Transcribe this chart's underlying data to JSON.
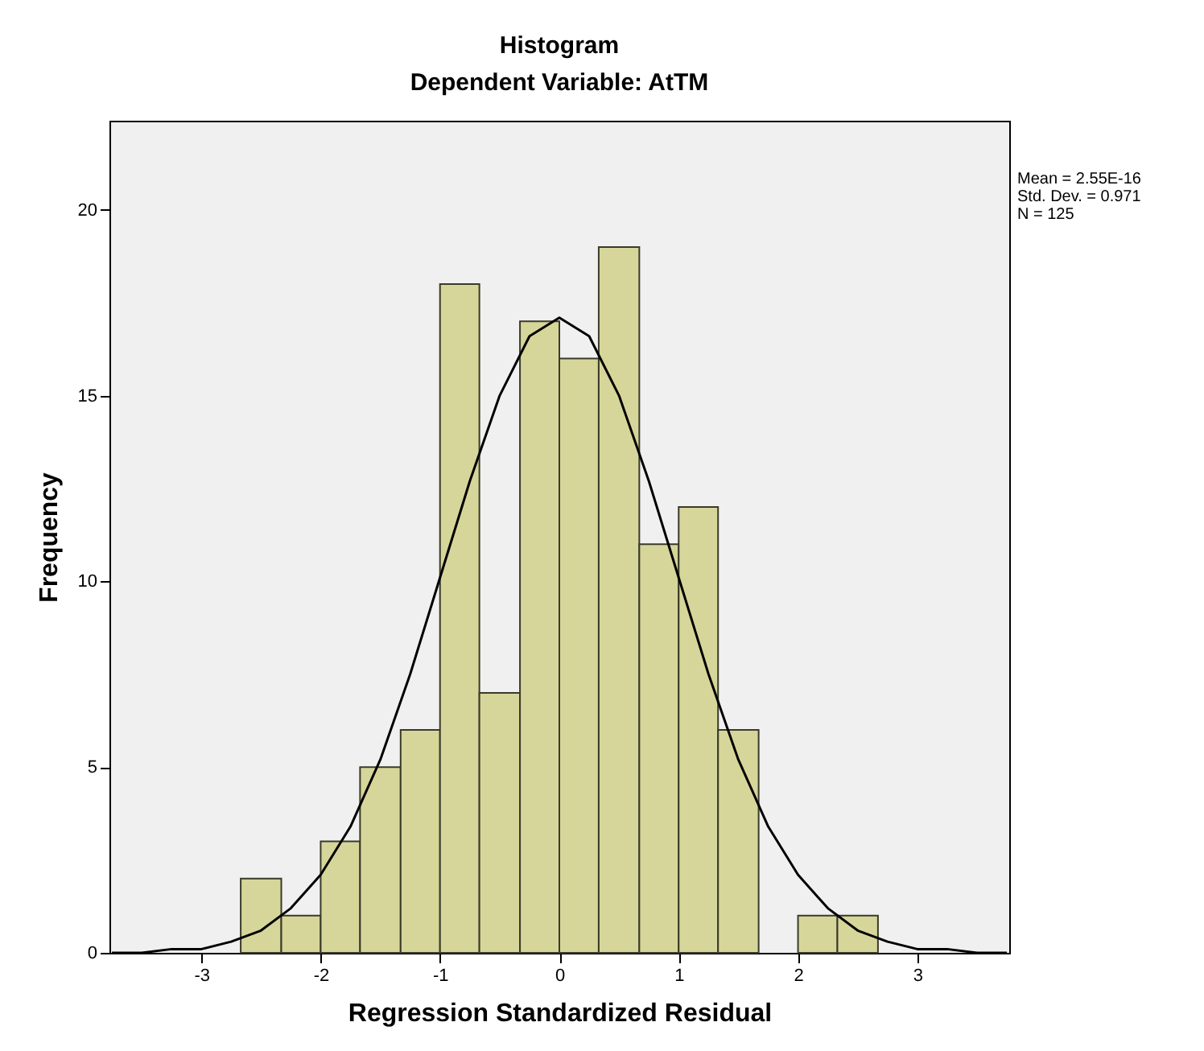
{
  "chart_data": {
    "type": "histogram",
    "title": "Histogram",
    "subtitle": "Dependent Variable: AtTM",
    "xlabel": "Regression Standardized Residual",
    "ylabel": "Frequency",
    "bins": [
      -2.67,
      -2.33,
      -2,
      -1.67,
      -1.33,
      -1,
      -0.67,
      -0.33,
      0,
      0.33,
      0.67,
      1,
      1.33,
      1.67,
      2,
      2.33,
      2.67
    ],
    "values": [
      2,
      1,
      3,
      5,
      6,
      18,
      7,
      17,
      16,
      19,
      11,
      12,
      6,
      0,
      1,
      1
    ],
    "color": "#d6d69a",
    "series": [
      {
        "type": "line",
        "color": "#000000",
        "x": [
          -3.75,
          -3.5,
          -3.25,
          -3,
          -2.75,
          -2.5,
          -2.25,
          -2,
          -1.75,
          -1.5,
          -1.25,
          -1,
          -0.75,
          -0.5,
          -0.25,
          0,
          0.25,
          0.5,
          0.75,
          1,
          1.25,
          1.5,
          1.75,
          2,
          2.25,
          2.5,
          2.75,
          3,
          3.25,
          3.5,
          3.75
        ],
        "values": [
          0,
          0,
          0.1,
          0.1,
          0.3,
          0.6,
          1.2,
          2.1,
          3.4,
          5.2,
          7.5,
          10.1,
          12.7,
          15,
          16.6,
          17.1,
          16.6,
          15,
          12.7,
          10.1,
          7.5,
          5.2,
          3.4,
          2.1,
          1.2,
          0.6,
          0.3,
          0.1,
          0.1,
          0,
          0
        ]
      }
    ],
    "xlim": [
      -3.77,
      3.77
    ],
    "xticks": [
      -3,
      -2,
      -1,
      0,
      1,
      2,
      3
    ],
    "ylim": [
      0,
      22.4
    ],
    "yticks": [
      0,
      5,
      10,
      15,
      20
    ],
    "grid": false,
    "annotations": [
      "Mean = 2.55E-16",
      "Std. Dev. = 0.971",
      "N = 125"
    ]
  }
}
